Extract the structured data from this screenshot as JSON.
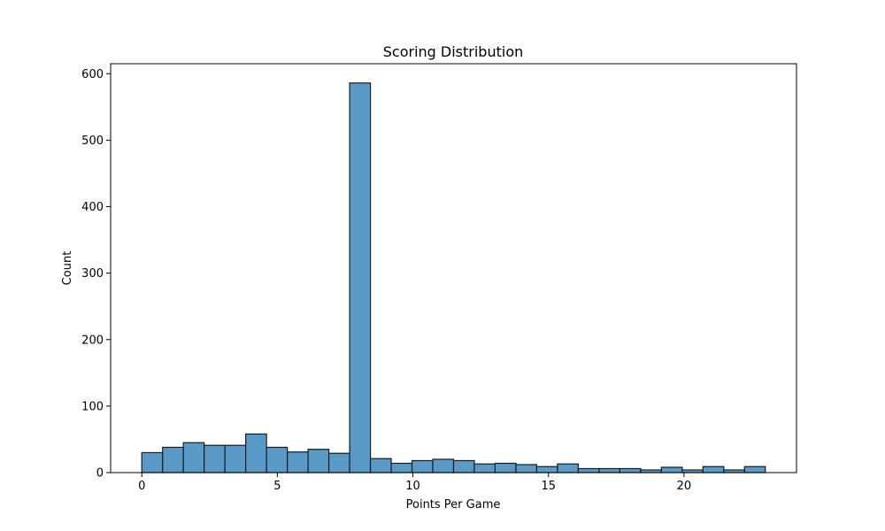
{
  "chart_data": {
    "type": "bar",
    "title": "Scoring Distribution",
    "xlabel": "Points Per Game",
    "ylabel": "Count",
    "xlim": [
      -1.15,
      24.15
    ],
    "ylim": [
      0,
      615
    ],
    "x_ticks": [
      0,
      5,
      10,
      15,
      20
    ],
    "y_ticks": [
      0,
      100,
      200,
      300,
      400,
      500,
      600
    ],
    "bin_width": 0.767,
    "bins": [
      {
        "x0": 0.0,
        "count": 30
      },
      {
        "x0": 0.767,
        "count": 38
      },
      {
        "x0": 1.533,
        "count": 45
      },
      {
        "x0": 2.3,
        "count": 41
      },
      {
        "x0": 3.067,
        "count": 41
      },
      {
        "x0": 3.833,
        "count": 58
      },
      {
        "x0": 4.6,
        "count": 38
      },
      {
        "x0": 5.367,
        "count": 31
      },
      {
        "x0": 6.133,
        "count": 35
      },
      {
        "x0": 6.9,
        "count": 29
      },
      {
        "x0": 7.667,
        "count": 586
      },
      {
        "x0": 8.433,
        "count": 21
      },
      {
        "x0": 9.2,
        "count": 14
      },
      {
        "x0": 9.967,
        "count": 18
      },
      {
        "x0": 10.733,
        "count": 20
      },
      {
        "x0": 11.5,
        "count": 18
      },
      {
        "x0": 12.267,
        "count": 13
      },
      {
        "x0": 13.033,
        "count": 14
      },
      {
        "x0": 13.8,
        "count": 12
      },
      {
        "x0": 14.567,
        "count": 9
      },
      {
        "x0": 15.333,
        "count": 13
      },
      {
        "x0": 16.1,
        "count": 6
      },
      {
        "x0": 16.867,
        "count": 6
      },
      {
        "x0": 17.633,
        "count": 6
      },
      {
        "x0": 18.4,
        "count": 4
      },
      {
        "x0": 19.167,
        "count": 8
      },
      {
        "x0": 19.933,
        "count": 4
      },
      {
        "x0": 20.7,
        "count": 9
      },
      {
        "x0": 21.467,
        "count": 4
      },
      {
        "x0": 22.233,
        "count": 9
      }
    ],
    "bar_color": "#5a9ac8",
    "edge_color": "#1a1a1a",
    "grid": false,
    "legend": "none"
  }
}
